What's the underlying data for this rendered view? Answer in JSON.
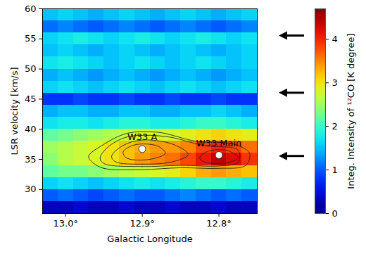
{
  "chart_data": {
    "type": "heatmap",
    "x_label": "Galactic Longitude",
    "y_label": "LSR velocity [km/s]",
    "xlim": [
      13.03,
      12.75
    ],
    "ylim": [
      26,
      60
    ],
    "xticks": [
      {
        "value": 13.0,
        "label": "13.0°"
      },
      {
        "value": 12.9,
        "label": "12.9°"
      },
      {
        "value": 12.8,
        "label": "12.8°"
      }
    ],
    "yticks": [
      30,
      35,
      40,
      45,
      50,
      55,
      60
    ],
    "x_bins": [
      13.03,
      13.01,
      12.99,
      12.97,
      12.95,
      12.93,
      12.91,
      12.89,
      12.87,
      12.85,
      12.83,
      12.81,
      12.79,
      12.77,
      12.75
    ],
    "y_bins": [
      26,
      28,
      30,
      32,
      34,
      36,
      38,
      40,
      42,
      44,
      46,
      48,
      50,
      52,
      54,
      56,
      58,
      60
    ],
    "values": [
      [
        0.3,
        0.3,
        0.4,
        0.3,
        0.3,
        0.4,
        0.3,
        0.3,
        0.4,
        0.3,
        0.3,
        0.4,
        0.3,
        0.3
      ],
      [
        1.0,
        1.1,
        1.0,
        0.9,
        1.0,
        1.1,
        1.0,
        1.0,
        1.1,
        1.2,
        1.1,
        1.0,
        1.1,
        1.0
      ],
      [
        1.6,
        1.7,
        1.6,
        1.5,
        1.6,
        1.7,
        1.8,
        1.7,
        1.8,
        1.9,
        2.0,
        2.0,
        1.9,
        1.8
      ],
      [
        2.2,
        2.3,
        2.3,
        2.4,
        2.5,
        2.6,
        2.7,
        2.8,
        2.9,
        3.1,
        3.3,
        3.4,
        3.3,
        3.2
      ],
      [
        2.4,
        2.6,
        2.7,
        2.8,
        3.0,
        3.2,
        3.4,
        3.5,
        3.6,
        3.8,
        4.1,
        4.4,
        4.2,
        3.9
      ],
      [
        2.5,
        2.6,
        2.7,
        2.8,
        3.0,
        3.2,
        3.3,
        3.4,
        3.4,
        3.5,
        3.8,
        4.0,
        3.8,
        3.6
      ],
      [
        2.2,
        2.3,
        2.4,
        2.5,
        2.6,
        2.7,
        2.8,
        2.8,
        2.8,
        2.9,
        3.0,
        3.1,
        3.0,
        2.9
      ],
      [
        1.7,
        1.8,
        1.8,
        1.7,
        1.8,
        1.9,
        1.9,
        1.8,
        1.8,
        1.9,
        2.0,
        2.0,
        1.9,
        1.8
      ],
      [
        1.4,
        1.5,
        1.5,
        1.4,
        1.4,
        1.5,
        1.5,
        1.4,
        1.4,
        1.5,
        1.5,
        1.6,
        1.5,
        1.4
      ],
      [
        0.8,
        0.8,
        0.9,
        0.8,
        0.8,
        0.9,
        0.8,
        0.8,
        0.9,
        0.8,
        0.8,
        0.9,
        0.8,
        0.8
      ],
      [
        1.6,
        1.7,
        1.6,
        1.5,
        1.6,
        1.7,
        1.6,
        1.5,
        1.6,
        1.7,
        1.6,
        1.5,
        1.6,
        1.7
      ],
      [
        1.4,
        1.5,
        1.4,
        1.3,
        1.4,
        1.5,
        1.4,
        1.3,
        1.4,
        1.5,
        1.4,
        1.3,
        1.4,
        1.5
      ],
      [
        1.7,
        1.8,
        1.7,
        1.6,
        1.5,
        1.6,
        1.7,
        1.6,
        1.5,
        1.6,
        1.7,
        1.6,
        1.5,
        1.6
      ],
      [
        1.5,
        1.6,
        1.5,
        1.4,
        1.5,
        1.6,
        1.5,
        1.4,
        1.5,
        1.6,
        1.5,
        1.4,
        1.5,
        1.6
      ],
      [
        1.6,
        1.7,
        1.8,
        1.7,
        1.6,
        1.7,
        1.8,
        1.7,
        1.6,
        1.7,
        1.8,
        1.7,
        1.6,
        1.7
      ],
      [
        1.1,
        1.2,
        1.1,
        1.0,
        1.1,
        1.2,
        1.1,
        1.0,
        1.1,
        1.2,
        1.1,
        1.0,
        1.1,
        1.2
      ],
      [
        1.5,
        1.6,
        1.5,
        1.4,
        1.5,
        1.6,
        1.5,
        1.4,
        1.5,
        1.6,
        1.5,
        1.4,
        1.5,
        1.6
      ]
    ],
    "colorbar": {
      "range": [
        0,
        4.7
      ],
      "ticks": [
        0,
        1,
        2,
        3,
        4
      ],
      "label": "Integ. Intensity of ¹²CO [K degree]"
    },
    "contours": [
      [
        [
          12.965,
          34.5
        ],
        [
          12.95,
          33.5
        ],
        [
          12.9,
          33.3
        ],
        [
          12.85,
          33.6
        ],
        [
          12.8,
          33.5
        ],
        [
          12.765,
          34.0
        ],
        [
          12.76,
          36.0
        ],
        [
          12.78,
          37.5
        ],
        [
          12.83,
          38.0
        ],
        [
          12.88,
          39.5
        ],
        [
          12.92,
          39.3
        ],
        [
          12.95,
          37.5
        ],
        [
          12.97,
          35.5
        ]
      ],
      [
        [
          12.95,
          34.3
        ],
        [
          12.9,
          33.8
        ],
        [
          12.85,
          34.0
        ],
        [
          12.8,
          33.9
        ],
        [
          12.775,
          34.5
        ],
        [
          12.775,
          36.5
        ],
        [
          12.82,
          37.3
        ],
        [
          12.87,
          38.8
        ],
        [
          12.92,
          38.7
        ],
        [
          12.945,
          37.0
        ],
        [
          12.955,
          35.2
        ]
      ],
      [
        [
          12.935,
          34.6
        ],
        [
          12.9,
          34.2
        ],
        [
          12.86,
          34.6
        ],
        [
          12.84,
          35.8
        ],
        [
          12.86,
          37.5
        ],
        [
          12.9,
          38.2
        ],
        [
          12.925,
          37.3
        ],
        [
          12.94,
          35.5
        ]
      ],
      [
        [
          12.92,
          35.2
        ],
        [
          12.89,
          35.0
        ],
        [
          12.87,
          36.0
        ],
        [
          12.88,
          37.2
        ],
        [
          12.91,
          37.4
        ],
        [
          12.925,
          36.2
        ]
      ],
      [
        [
          12.82,
          34.6
        ],
        [
          12.79,
          34.4
        ],
        [
          12.775,
          35.3
        ],
        [
          12.79,
          36.5
        ],
        [
          12.815,
          36.3
        ],
        [
          12.825,
          35.3
        ]
      ]
    ],
    "points": [
      {
        "label": "W33 A",
        "x": 12.9,
        "y": 36.7
      },
      {
        "label": "W33 Main",
        "x": 12.8,
        "y": 35.7
      }
    ],
    "arrows": [
      55.5,
      46,
      35.5
    ]
  }
}
